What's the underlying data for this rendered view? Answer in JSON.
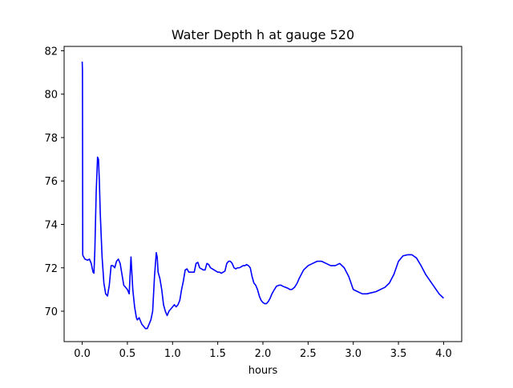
{
  "chart_data": {
    "type": "line",
    "title": "Water Depth h at gauge 520",
    "xlabel": "hours",
    "ylabel": "",
    "xlim": [
      -0.2,
      4.2
    ],
    "ylim": [
      68.6,
      82.2
    ],
    "xticks": [
      0.0,
      0.5,
      1.0,
      1.5,
      2.0,
      2.5,
      3.0,
      3.5,
      4.0
    ],
    "xtick_labels": [
      "0.0",
      "0.5",
      "1.0",
      "1.5",
      "2.0",
      "2.5",
      "3.0",
      "3.5",
      "4.0"
    ],
    "yticks": [
      70,
      72,
      74,
      76,
      78,
      80,
      82
    ],
    "ytick_labels": [
      "70",
      "72",
      "74",
      "76",
      "78",
      "80",
      "82"
    ],
    "grid": false,
    "line_color": "#0000ff",
    "series": [
      {
        "x": [
          0.0,
          0.003,
          0.006,
          0.01,
          0.03,
          0.06,
          0.08,
          0.1,
          0.12,
          0.13,
          0.14,
          0.155,
          0.17,
          0.18,
          0.19,
          0.2,
          0.22,
          0.24,
          0.26,
          0.28,
          0.3,
          0.32,
          0.34,
          0.36,
          0.38,
          0.4,
          0.42,
          0.44,
          0.46,
          0.48,
          0.5,
          0.52,
          0.54,
          0.56,
          0.58,
          0.6,
          0.61,
          0.62,
          0.63,
          0.64,
          0.66,
          0.68,
          0.7,
          0.72,
          0.74,
          0.76,
          0.78,
          0.8,
          0.82,
          0.83,
          0.84,
          0.86,
          0.88,
          0.9,
          0.92,
          0.94,
          0.96,
          0.98,
          1.0,
          1.02,
          1.04,
          1.06,
          1.08,
          1.1,
          1.12,
          1.14,
          1.16,
          1.18,
          1.2,
          1.22,
          1.24,
          1.26,
          1.28,
          1.3,
          1.32,
          1.34,
          1.36,
          1.38,
          1.4,
          1.42,
          1.44,
          1.46,
          1.48,
          1.5,
          1.52,
          1.54,
          1.56,
          1.58,
          1.6,
          1.62,
          1.64,
          1.66,
          1.68,
          1.7,
          1.72,
          1.74,
          1.76,
          1.78,
          1.8,
          1.82,
          1.84,
          1.86,
          1.88,
          1.9,
          1.92,
          1.94,
          1.96,
          1.98,
          2.0,
          2.02,
          2.04,
          2.06,
          2.08,
          2.1,
          2.12,
          2.15,
          2.18,
          2.2,
          2.22,
          2.25,
          2.28,
          2.3,
          2.32,
          2.35,
          2.38,
          2.4,
          2.45,
          2.5,
          2.55,
          2.6,
          2.65,
          2.7,
          2.75,
          2.8,
          2.85,
          2.9,
          2.95,
          3.0,
          3.05,
          3.1,
          3.15,
          3.2,
          3.25,
          3.3,
          3.35,
          3.4,
          3.45,
          3.5,
          3.55,
          3.6,
          3.65,
          3.7,
          3.75,
          3.8,
          3.85,
          3.9,
          3.95,
          4.0
        ],
        "y": [
          81.5,
          81.1,
          72.6,
          72.55,
          72.4,
          72.35,
          72.4,
          72.2,
          71.8,
          71.75,
          72.8,
          75.5,
          77.1,
          77.0,
          76.0,
          74.5,
          72.5,
          71.3,
          70.8,
          70.7,
          71.2,
          72.1,
          72.1,
          72.0,
          72.3,
          72.4,
          72.2,
          71.7,
          71.2,
          71.1,
          71.0,
          70.8,
          72.5,
          71.0,
          70.2,
          69.7,
          69.6,
          69.65,
          69.7,
          69.6,
          69.4,
          69.3,
          69.2,
          69.2,
          69.4,
          69.6,
          70.0,
          71.6,
          72.7,
          72.5,
          71.8,
          71.5,
          71.0,
          70.3,
          70.0,
          69.8,
          70.0,
          70.1,
          70.2,
          70.3,
          70.2,
          70.3,
          70.5,
          71.0,
          71.4,
          71.9,
          71.95,
          71.8,
          71.8,
          71.8,
          71.8,
          72.2,
          72.25,
          72.0,
          71.95,
          71.9,
          71.9,
          72.2,
          72.15,
          72.0,
          71.95,
          71.9,
          71.85,
          71.8,
          71.8,
          71.75,
          71.8,
          71.85,
          72.2,
          72.3,
          72.3,
          72.2,
          72.0,
          71.95,
          72.0,
          72.0,
          72.05,
          72.1,
          72.1,
          72.15,
          72.1,
          72.0,
          71.6,
          71.3,
          71.2,
          71.0,
          70.7,
          70.5,
          70.4,
          70.35,
          70.35,
          70.45,
          70.6,
          70.8,
          70.95,
          71.15,
          71.2,
          71.2,
          71.15,
          71.1,
          71.05,
          71.0,
          71.0,
          71.1,
          71.3,
          71.5,
          71.9,
          72.1,
          72.2,
          72.3,
          72.3,
          72.2,
          72.1,
          72.1,
          72.2,
          72.0,
          71.6,
          71.0,
          70.9,
          70.8,
          70.8,
          70.85,
          70.9,
          71.0,
          71.1,
          71.3,
          71.7,
          72.3,
          72.55,
          72.6,
          72.6,
          72.45,
          72.1,
          71.7,
          71.4,
          71.1,
          70.8,
          70.6
        ]
      }
    ]
  }
}
